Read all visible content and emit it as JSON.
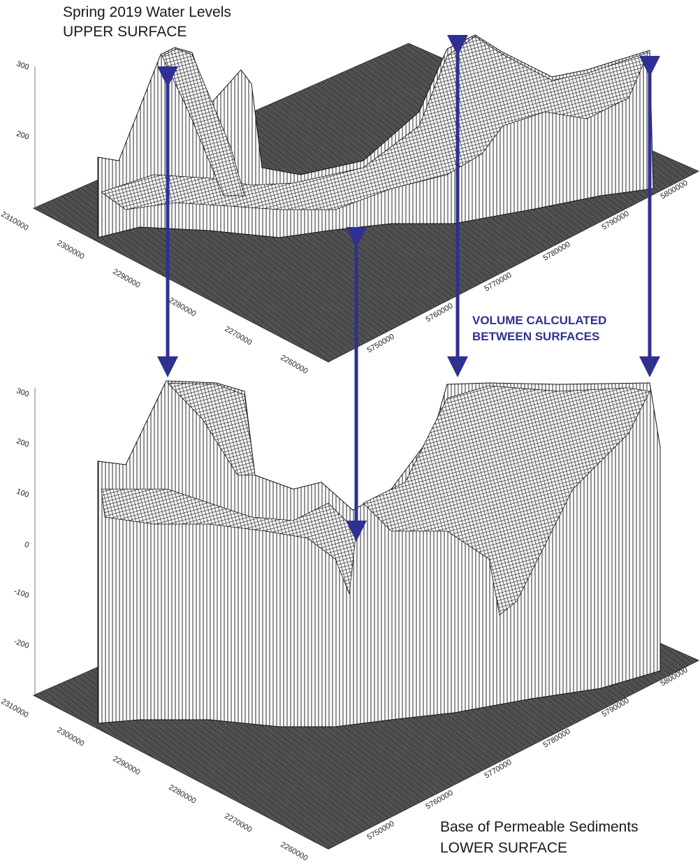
{
  "upper": {
    "title": "Spring 2019 Water Levels",
    "subtitle": "UPPER SURFACE",
    "z_ticks": [
      300,
      200
    ],
    "x_ticks": [
      2310000,
      2300000,
      2290000,
      2280000,
      2270000,
      2260000
    ],
    "y_ticks": [
      5750000,
      5760000,
      5770000,
      5780000,
      5790000,
      5800000
    ]
  },
  "lower": {
    "title": "Base of Permeable Sediments",
    "subtitle": "LOWER SURFACE",
    "z_ticks": [
      300,
      200,
      100,
      0,
      -100,
      -200
    ],
    "x_ticks": [
      2310000,
      2300000,
      2290000,
      2280000,
      2270000,
      2260000
    ],
    "y_ticks": [
      5750000,
      5760000,
      5770000,
      5780000,
      5790000,
      5800000
    ]
  },
  "annotation": [
    "VOLUME CALCULATED",
    "BETWEEN SURFACES"
  ]
}
